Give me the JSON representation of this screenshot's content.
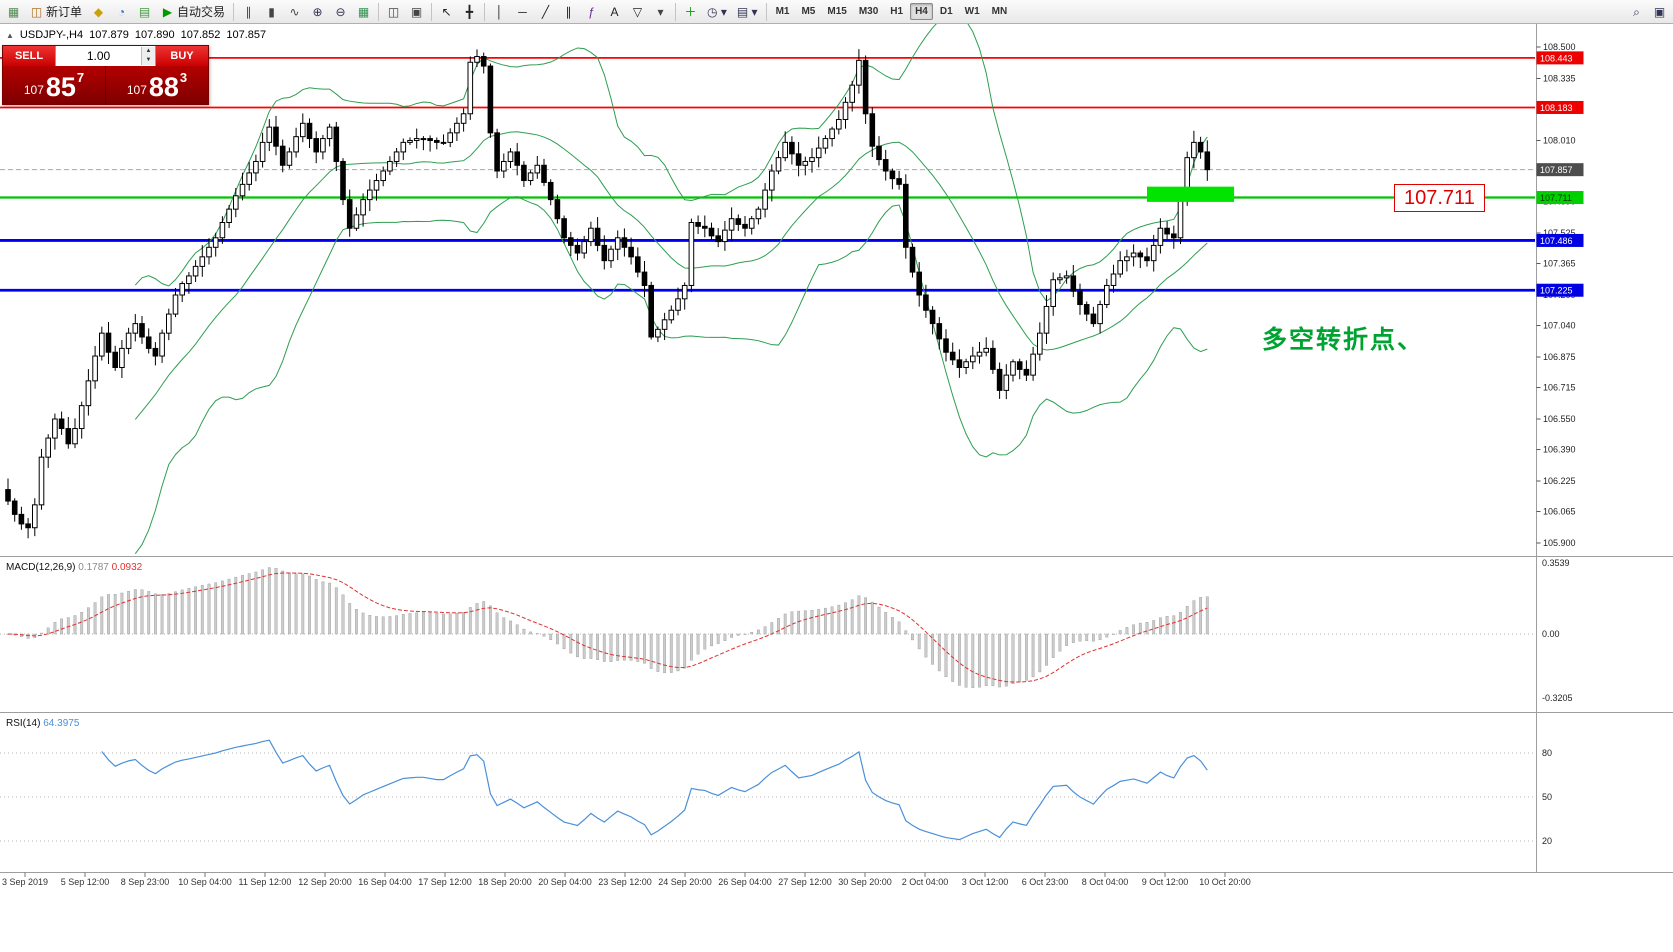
{
  "toolbar": {
    "left_groups": [
      [
        {
          "name": "charts-icon",
          "glyph": "▦",
          "color": "#4f8a4f"
        },
        {
          "name": "new-order-button",
          "label": "新订单",
          "glyph": "◫",
          "color": "#b07020"
        },
        {
          "name": "metaeditor-icon",
          "glyph": "◆",
          "color": "#c8a010"
        },
        {
          "name": "market-watch-icon",
          "glyph": "◔",
          "color": "#2f6fc0"
        },
        {
          "name": "navigator-icon",
          "glyph": "▤",
          "color": "#3f9a3f"
        },
        {
          "name": "auto-trading-button",
          "label": "自动交易",
          "glyph": "▶",
          "color": "#009a00"
        }
      ],
      [
        {
          "name": "bar-chart-icon",
          "glyph": "∥",
          "color": "#444"
        },
        {
          "name": "candlestick-chart-icon",
          "glyph": "▮",
          "color": "#444"
        },
        {
          "name": "line-chart-icon",
          "glyph": "∿",
          "color": "#444"
        },
        {
          "name": "zoom-in-icon",
          "glyph": "⊕",
          "color": "#335"
        },
        {
          "name": "zoom-out-icon",
          "glyph": "⊖",
          "color": "#335"
        },
        {
          "name": "grid-icon",
          "glyph": "▦",
          "color": "#2f8f4f"
        }
      ],
      [
        {
          "name": "tile-windows-icon",
          "glyph": "◫",
          "color": "#444"
        },
        {
          "name": "cascade-windows-icon",
          "glyph": "▣",
          "color": "#444"
        }
      ],
      [
        {
          "name": "cursor-icon",
          "glyph": "↖",
          "color": "#222"
        },
        {
          "name": "crosshair-icon",
          "glyph": "╋",
          "color": "#222"
        }
      ],
      [
        {
          "name": "vertical-line-icon",
          "glyph": "│",
          "color": "#222"
        },
        {
          "name": "horizontal-line-icon",
          "glyph": "─",
          "color": "#222"
        },
        {
          "name": "trendline-icon",
          "glyph": "╱",
          "color": "#222"
        },
        {
          "name": "channel-icon",
          "glyph": "∥",
          "color": "#222"
        },
        {
          "name": "fibonacci-icon",
          "glyph": "ƒ",
          "color": "#6a2a8a"
        },
        {
          "name": "text-tool-icon",
          "glyph": "A",
          "color": "#222"
        },
        {
          "name": "label-tool-icon",
          "glyph": "▽",
          "color": "#222"
        },
        {
          "name": "shapes-dropdown-icon",
          "glyph": "▾",
          "color": "#444"
        }
      ],
      [
        {
          "name": "indicators-add-icon",
          "glyph": "＋",
          "color": "#009a00"
        },
        {
          "name": "periods-dropdown-icon",
          "glyph": "◷ ▾",
          "color": "#335"
        },
        {
          "name": "templates-dropdown-icon",
          "glyph": "▤ ▾",
          "color": "#335"
        }
      ]
    ],
    "timeframes": {
      "items": [
        "M1",
        "M5",
        "M15",
        "M30",
        "H1",
        "H4",
        "D1",
        "W1",
        "MN"
      ],
      "active": "H4"
    },
    "right_items": [
      {
        "name": "search-icon",
        "glyph": "⌕",
        "color": "#335"
      },
      {
        "name": "window-layout-icon",
        "glyph": "▣",
        "color": "#335"
      }
    ]
  },
  "chart": {
    "symbol_title": {
      "symbol": "USDJPY-,H4",
      "open": "107.879",
      "high": "107.890",
      "low": "107.852",
      "close": "107.857"
    },
    "one_click": {
      "toggle_glyph": "▲",
      "sell_label": "SELL",
      "buy_label": "BUY",
      "volume": "1.00",
      "vol_up_glyph": "▲",
      "vol_down_glyph": "▼",
      "sell_price": {
        "small": "107",
        "big": "85",
        "sup": "7"
      },
      "buy_price": {
        "small": "107",
        "big": "88",
        "sup": "3"
      }
    },
    "annotation": {
      "text": "多空转折点、",
      "color": "#00a331"
    },
    "price_label": {
      "text": "107.711",
      "color": "#e00000"
    }
  },
  "chart_data": {
    "type": "candlestick",
    "symbol": "USDJPY",
    "timeframe": "H4",
    "first_open": 106.18,
    "closes": [
      106.12,
      106.05,
      106.0,
      105.98,
      106.1,
      106.35,
      106.45,
      106.55,
      106.5,
      106.42,
      106.5,
      106.62,
      106.75,
      106.88,
      107.0,
      106.9,
      106.82,
      106.92,
      107.0,
      107.05,
      106.98,
      106.92,
      106.88,
      107.0,
      107.1,
      107.2,
      107.26,
      107.3,
      107.35,
      107.4,
      107.45,
      107.5,
      107.58,
      107.65,
      107.72,
      107.78,
      107.84,
      107.9,
      108.0,
      108.08,
      107.98,
      107.88,
      107.95,
      108.03,
      108.1,
      108.02,
      107.95,
      108.02,
      108.08,
      107.9,
      107.7,
      107.55,
      107.62,
      107.7,
      107.75,
      107.8,
      107.85,
      107.9,
      107.95,
      108.0,
      108.01,
      108.02,
      108.02,
      108.01,
      108.0,
      108.0,
      108.05,
      108.1,
      108.15,
      108.42,
      108.45,
      108.4,
      108.05,
      107.85,
      107.9,
      107.95,
      107.88,
      107.8,
      107.84,
      107.88,
      107.79,
      107.7,
      107.6,
      107.5,
      107.46,
      107.42,
      107.48,
      107.55,
      107.46,
      107.38,
      107.44,
      107.5,
      107.45,
      107.4,
      107.32,
      107.25,
      106.98,
      107.02,
      107.07,
      107.12,
      107.18,
      107.25,
      107.58,
      107.56,
      107.55,
      107.51,
      107.48,
      107.54,
      107.6,
      107.57,
      107.55,
      107.6,
      107.65,
      107.75,
      107.85,
      107.92,
      108.0,
      107.94,
      107.88,
      107.9,
      107.92,
      107.97,
      108.02,
      108.07,
      108.12,
      108.21,
      108.3,
      108.43,
      108.15,
      107.98,
      107.91,
      107.85,
      107.81,
      107.78,
      107.45,
      107.32,
      107.2,
      107.12,
      107.05,
      106.97,
      106.9,
      106.86,
      106.82,
      106.85,
      106.88,
      106.9,
      106.92,
      106.81,
      106.7,
      106.78,
      106.85,
      106.81,
      106.78,
      106.89,
      107.0,
      107.14,
      107.28,
      107.29,
      107.3,
      107.22,
      107.15,
      107.1,
      107.05,
      107.15,
      107.25,
      107.31,
      107.38,
      107.4,
      107.42,
      107.4,
      107.38,
      107.46,
      107.55,
      107.52,
      107.5,
      107.7,
      107.92,
      108.0,
      107.95,
      107.857
    ],
    "levels": [
      {
        "price": 108.443,
        "badge": "108.443",
        "color": "#ff0000",
        "width": 1.8,
        "badge_bg": "#ee0000",
        "badge_fg": "#ffffff"
      },
      {
        "price": 108.183,
        "badge": "108.183",
        "color": "#ff0000",
        "width": 1.8,
        "badge_bg": "#ee0000",
        "badge_fg": "#ffffff"
      },
      {
        "price": 107.711,
        "badge": "107.711",
        "color": "#00c400",
        "width": 2.2,
        "badge_bg": "#00d000",
        "badge_fg": "#003300"
      },
      {
        "price": 107.486,
        "badge": "107.486",
        "color": "#0000f0",
        "width": 2.8,
        "badge_bg": "#0000e0",
        "badge_fg": "#ffffff"
      },
      {
        "price": 107.225,
        "badge": "107.225",
        "color": "#0000f0",
        "width": 2.8,
        "badge_bg": "#0000e0",
        "badge_fg": "#ffffff"
      }
    ],
    "current_price": {
      "price": 107.857,
      "badge": "107.857",
      "line_color": "#a8a8a8",
      "badge_bg": "#4d4d4d",
      "badge_fg": "#ffffff"
    },
    "price_ticks": [
      "108.500",
      "108.335",
      "108.170",
      "108.010",
      "107.850",
      "107.690",
      "107.525",
      "107.365",
      "107.200",
      "107.040",
      "106.875",
      "106.715",
      "106.550",
      "106.390",
      "106.225",
      "106.065",
      "105.900"
    ],
    "time_labels": [
      "3 Sep 2019",
      "5 Sep 12:00",
      "8 Sep 23:00",
      "10 Sep 04:00",
      "11 Sep 12:00",
      "12 Sep 20:00",
      "16 Sep 04:00",
      "17 Sep 12:00",
      "18 Sep 20:00",
      "20 Sep 04:00",
      "23 Sep 12:00",
      "24 Sep 20:00",
      "26 Sep 04:00",
      "27 Sep 12:00",
      "30 Sep 20:00",
      "2 Oct 04:00",
      "3 Oct 12:00",
      "6 Oct 23:00",
      "8 Oct 04:00",
      "9 Oct 12:00",
      "10 Oct 20:00"
    ],
    "highlight_rect": {
      "from_bar": 170,
      "to_bar": 183,
      "price_top": 107.768,
      "price_bottom": 107.688,
      "color": "#00e400"
    },
    "indicators": {
      "bollinger": {
        "period": 20,
        "deviation": 2,
        "color": "#2e9e50"
      },
      "macd": {
        "label": "MACD(12,26,9)",
        "value_main": "0.1787",
        "value_signal": "0.0932",
        "scale_top": "0.3539",
        "scale_zero": "0.00",
        "scale_bottom": "-0.3205",
        "hist_fill": "#cccccc",
        "hist_stroke": "#9a9a9a",
        "signal_color": "#e03030"
      },
      "rsi": {
        "label": "RSI(14)",
        "value": "64.3975",
        "levels": [
          "80",
          "50",
          "20"
        ],
        "line_color": "#4a90d9"
      }
    }
  }
}
